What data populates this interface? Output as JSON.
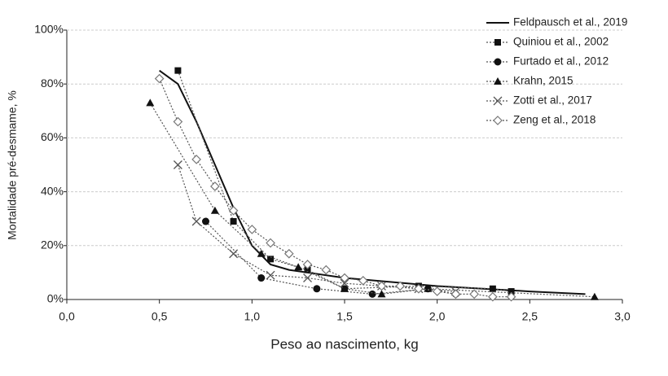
{
  "chart_data": {
    "type": "line",
    "x_label": "Peso ao nascimento, kg",
    "y_label": "Mortalidade pré-desmame, %",
    "xlim": [
      0,
      3
    ],
    "xticks": [
      {
        "value": 0,
        "label": "0,0"
      },
      {
        "value": 0.5,
        "label": "0,5"
      },
      {
        "value": 1,
        "label": "1,0"
      },
      {
        "value": 1.5,
        "label": "1,5"
      },
      {
        "value": 2,
        "label": "2,0"
      },
      {
        "value": 2.5,
        "label": "2,5"
      },
      {
        "value": 3,
        "label": "3,0"
      }
    ],
    "ylim": [
      0,
      100
    ],
    "yticks": [
      {
        "value": 0,
        "label": "0%"
      },
      {
        "value": 20,
        "label": "20%"
      },
      {
        "value": 40,
        "label": "40%"
      },
      {
        "value": 60,
        "label": "60%"
      },
      {
        "value": 80,
        "label": "80%"
      },
      {
        "value": 100,
        "label": "100%"
      }
    ],
    "grid": true,
    "legend": "right",
    "series": [
      {
        "name": "Feldpausch et al., 2019",
        "color": "#111111",
        "marker": "none",
        "line": "solid",
        "x": [
          0.5,
          0.6,
          0.7,
          0.8,
          0.9,
          1.0,
          1.1,
          1.2,
          1.5,
          2.0,
          2.5,
          2.8
        ],
        "values": [
          85,
          80,
          66,
          50,
          34,
          20,
          13,
          11,
          8,
          5,
          3,
          2
        ]
      },
      {
        "name": "Quiniou et al., 2002",
        "color": "#111111",
        "marker": "square",
        "line": "dotted",
        "x": [
          0.6,
          0.9,
          1.1,
          1.3,
          1.5,
          1.9,
          2.3,
          2.4
        ],
        "values": [
          85,
          29,
          15,
          11,
          4,
          5,
          4,
          3
        ]
      },
      {
        "name": "Furtado et al., 2012",
        "color": "#111111",
        "marker": "circle",
        "line": "dotted",
        "x": [
          0.75,
          1.05,
          1.35,
          1.65,
          1.95,
          2.1
        ],
        "values": [
          29,
          8,
          4,
          2,
          4,
          2
        ]
      },
      {
        "name": "Krahn, 2015",
        "color": "#111111",
        "marker": "triangle",
        "line": "dotted",
        "x": [
          0.45,
          0.8,
          1.05,
          1.25,
          1.5,
          1.7,
          1.95,
          2.85
        ],
        "values": [
          73,
          33,
          17,
          12,
          4,
          2,
          4,
          1
        ]
      },
      {
        "name": "Zotti et al., 2017",
        "color": "#555555",
        "marker": "cross",
        "line": "dotted",
        "x": [
          0.6,
          0.7,
          0.9,
          1.1,
          1.3,
          1.5,
          1.7,
          1.9,
          2.1
        ],
        "values": [
          50,
          29,
          17,
          9,
          8,
          6,
          5,
          4,
          3
        ]
      },
      {
        "name": "Zeng et al., 2018",
        "color": "#777777",
        "marker": "diamond",
        "line": "dotted",
        "x": [
          0.5,
          0.6,
          0.7,
          0.8,
          0.9,
          1.0,
          1.1,
          1.2,
          1.3,
          1.4,
          1.5,
          1.6,
          1.7,
          1.8,
          1.9,
          2.0,
          2.1,
          2.2,
          2.3,
          2.4
        ],
        "values": [
          82,
          66,
          52,
          42,
          33,
          26,
          21,
          17,
          13,
          11,
          8,
          7,
          5,
          5,
          4,
          3,
          2,
          2,
          1,
          1
        ]
      }
    ]
  }
}
